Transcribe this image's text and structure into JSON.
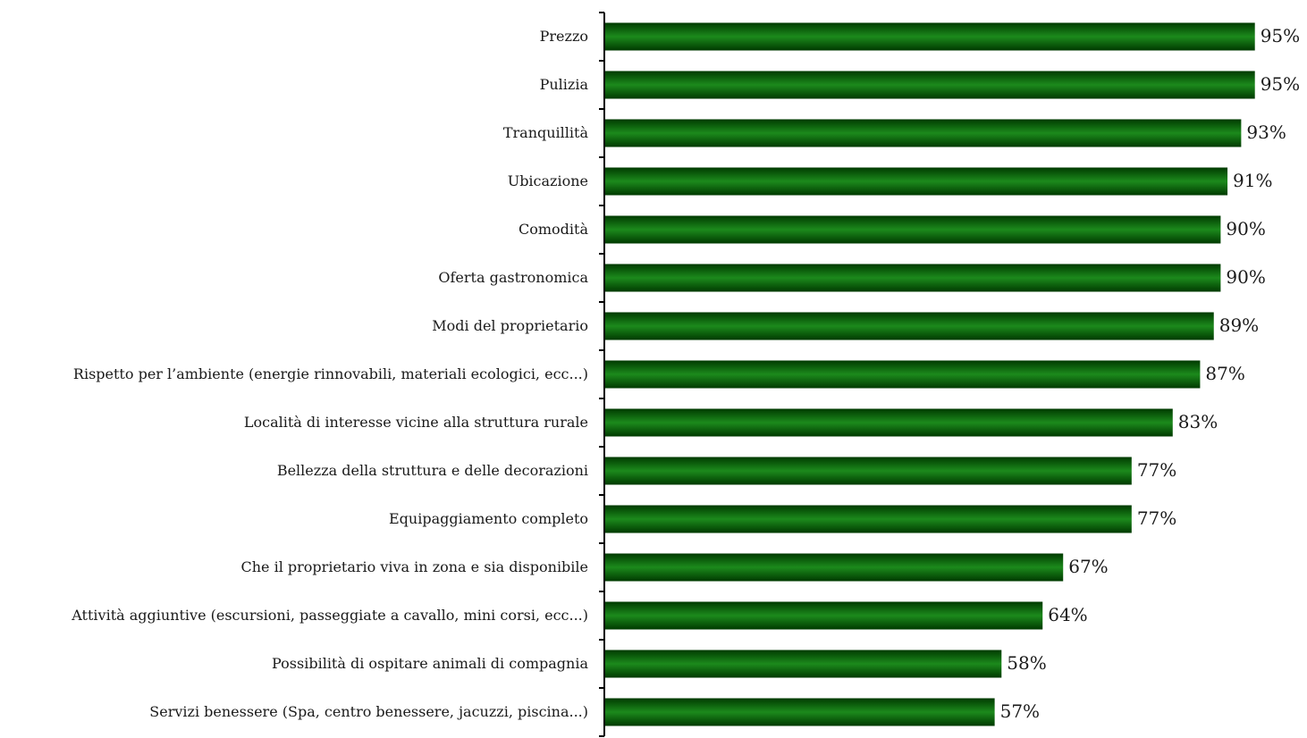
{
  "chart_data": {
    "type": "bar",
    "orientation": "horizontal",
    "title": "",
    "xlabel": "",
    "ylabel": "",
    "value_suffix": "%",
    "categories": [
      "Prezzo",
      "Pulizia",
      "Tranquillità",
      "Ubicazione",
      "Comodità",
      "Oferta gastronomica",
      "Modi del proprietario",
      "Rispetto per l’ambiente (energie rinnovabili, materiali ecologici, ecc...)",
      "Località di interesse vicine alla struttura rurale",
      "Bellezza della struttura e delle decorazioni",
      "Equipaggiamento completo",
      "Che il proprietario viva in zona e sia disponibile",
      "Attività aggiuntive (escursioni, passeggiate a cavallo, mini corsi, ecc...)",
      "Possibilità di ospitare animali di compagnia",
      "Servizi benessere (Spa, centro benessere, jacuzzi, piscina...)"
    ],
    "values": [
      95,
      95,
      93,
      91,
      90,
      90,
      89,
      87,
      83,
      77,
      77,
      67,
      64,
      58,
      57
    ],
    "xlim": [
      0,
      100
    ],
    "grid": false,
    "legend": "none",
    "colors": {
      "bar": "#137a13",
      "bar_dark": "#003a00",
      "axis": "#000000"
    }
  }
}
